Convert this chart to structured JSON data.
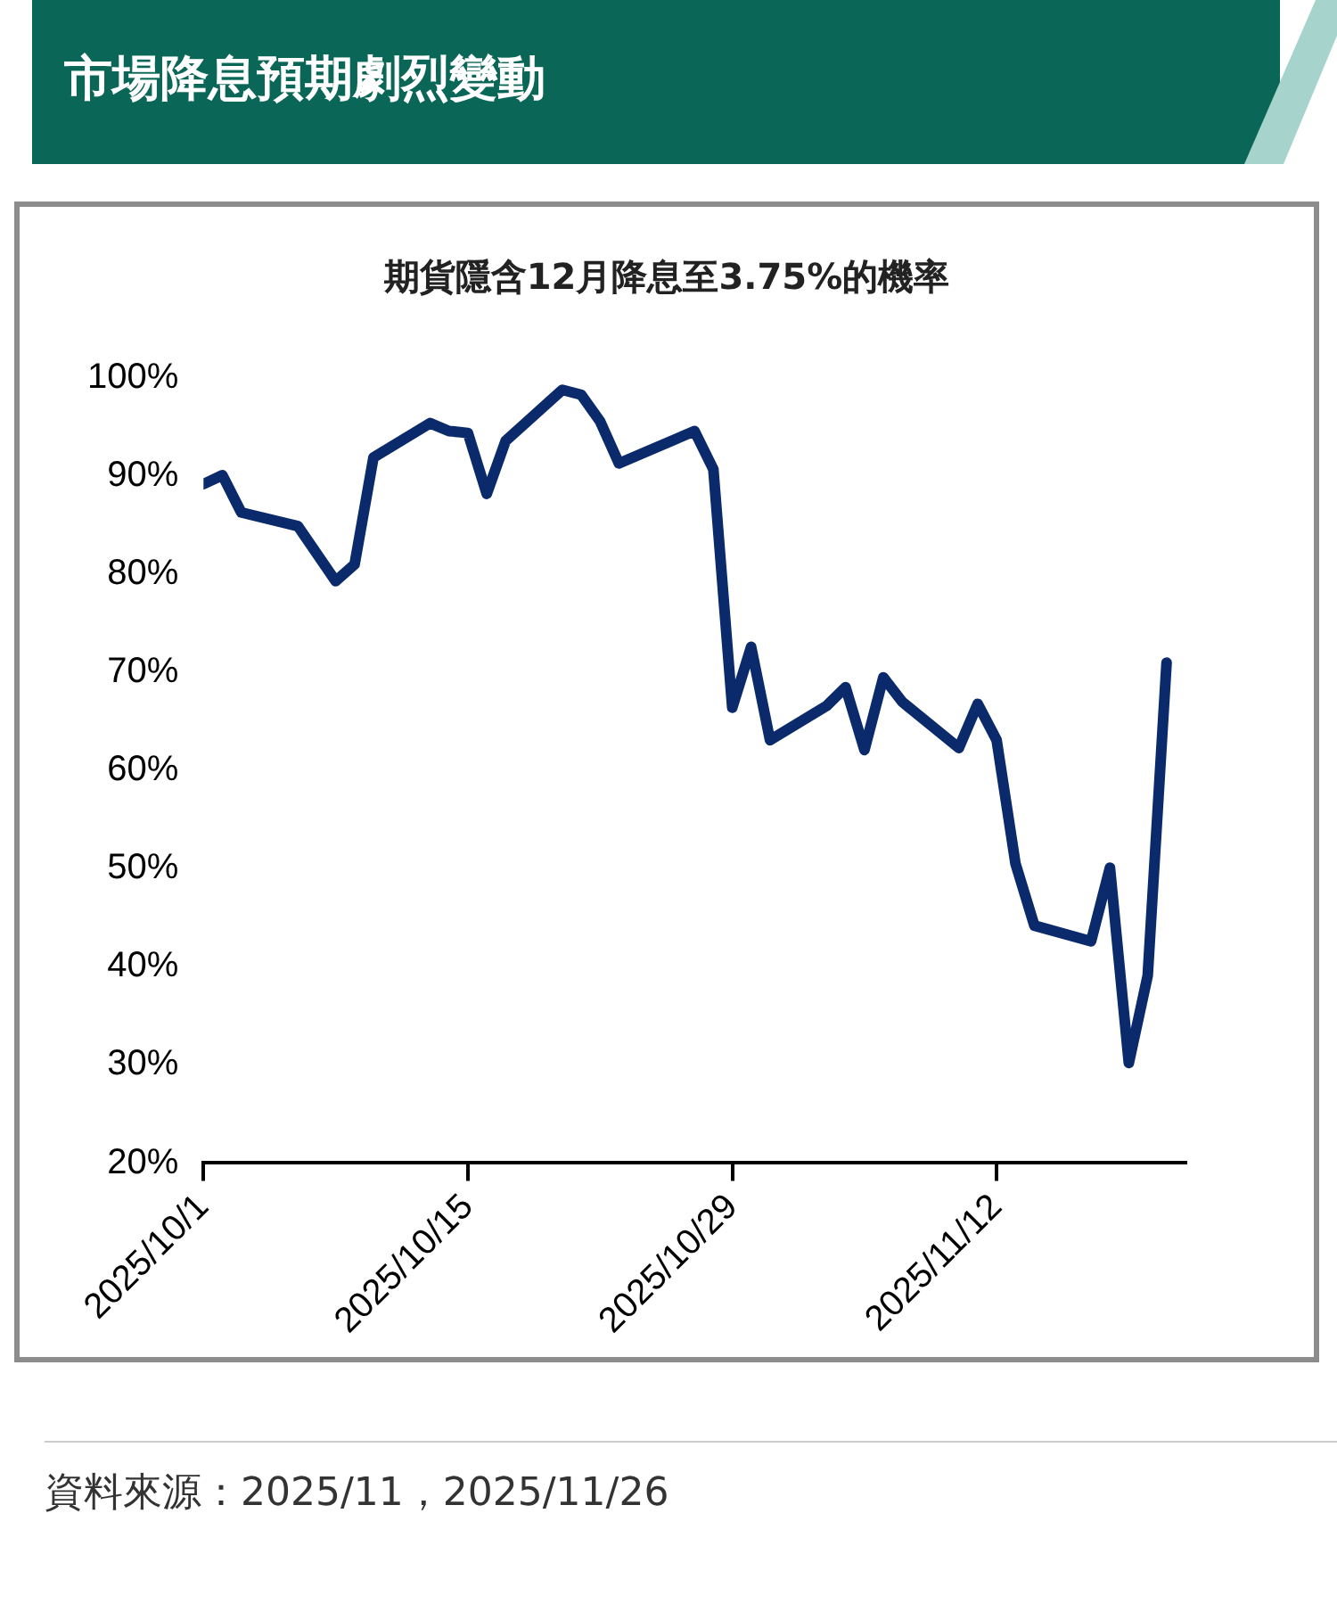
{
  "chart_data": {
    "type": "line",
    "title": "市場降息預期劇烈變動",
    "subtitle": "期貨隱含12月降息至3.75%的機率",
    "x": [
      "2025-10-01",
      "2025-10-02",
      "2025-10-03",
      "2025-10-06",
      "2025-10-08",
      "2025-10-09",
      "2025-10-10",
      "2025-10-13",
      "2025-10-14",
      "2025-10-15",
      "2025-10-16",
      "2025-10-17",
      "2025-10-20",
      "2025-10-21",
      "2025-10-22",
      "2025-10-23",
      "2025-10-27",
      "2025-10-28",
      "2025-10-29",
      "2025-10-30",
      "2025-10-31",
      "2025-11-03",
      "2025-11-04",
      "2025-11-05",
      "2025-11-06",
      "2025-11-07",
      "2025-11-10",
      "2025-11-11",
      "2025-11-12",
      "2025-11-13",
      "2025-11-14",
      "2025-11-17",
      "2025-11-18",
      "2025-11-19",
      "2025-11-20",
      "2025-11-21"
    ],
    "series": [
      {
        "color": "#0b2a6b",
        "values": [
          89.2,
          90.1,
          86.3,
          84.9,
          79.3,
          81,
          91.9,
          95.4,
          94.6,
          94.4,
          88.2,
          93.6,
          98.8,
          98.3,
          95.6,
          91.3,
          94.6,
          90.7,
          66.4,
          72.6,
          63.1,
          66.6,
          68.5,
          62.1,
          69.5,
          67,
          62.3,
          66.8,
          63.1,
          50.5,
          44.2,
          42.6,
          50.1,
          30.2,
          39.1,
          71
        ]
      }
    ],
    "xlim": [
      "2025-10-01",
      "2025-11-22"
    ],
    "xticks": [
      {
        "value": "2025-10-01",
        "label": "2025/10/1"
      },
      {
        "value": "2025-10-15",
        "label": "2025/10/15"
      },
      {
        "value": "2025-10-29",
        "label": "2025/10/29"
      },
      {
        "value": "2025-11-12",
        "label": "2025/11/12"
      }
    ],
    "ylim": [
      20,
      100
    ],
    "yticks": [
      {
        "value": 20,
        "label": "20%"
      },
      {
        "value": 30,
        "label": "30%"
      },
      {
        "value": 40,
        "label": "40%"
      },
      {
        "value": 50,
        "label": "50%"
      },
      {
        "value": 60,
        "label": "60%"
      },
      {
        "value": 70,
        "label": "70%"
      },
      {
        "value": 80,
        "label": "80%"
      },
      {
        "value": 90,
        "label": "90%"
      },
      {
        "value": 100,
        "label": "100%"
      }
    ],
    "grid": false,
    "legend": false,
    "marker": "none",
    "line_style": "solid",
    "annotations": [
      "資料來源：2025/11，2025/11/26"
    ]
  }
}
